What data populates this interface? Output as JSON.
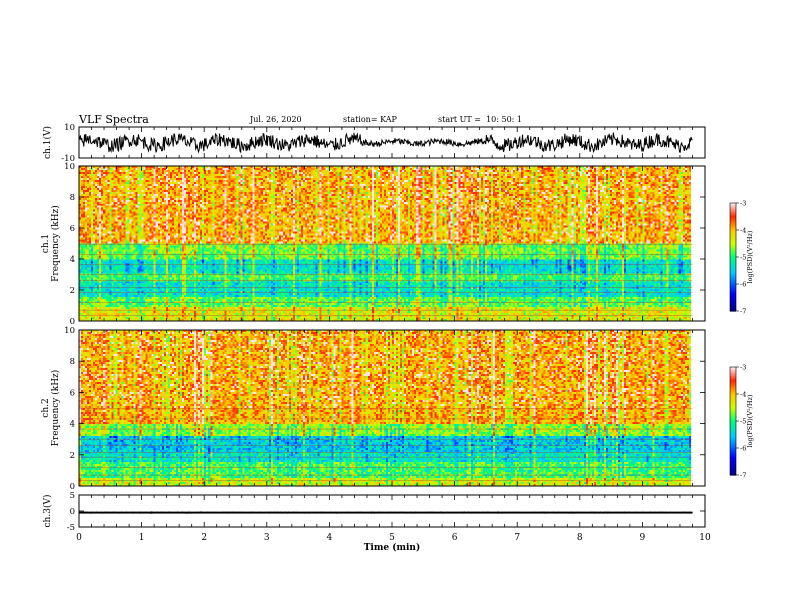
{
  "header": {
    "title": "VLF Spectra",
    "date": "Jul. 26, 2020",
    "station": "station= KAP",
    "start": "start UT =  10: 50: 1"
  },
  "chart_data": [
    {
      "type": "line",
      "panel": "ch1-waveform",
      "ylabel": "ch.1(V)",
      "ylim": [
        -10,
        10
      ],
      "yticks": [
        "10",
        "-10"
      ],
      "xlim": [
        0,
        10
      ],
      "series": [
        {
          "values": "noisy waveform, amplitude approx -8 to +8 V, 0 to 9.8 min"
        }
      ]
    },
    {
      "type": "heatmap",
      "panel": "ch1-spectrogram",
      "ylabel_line1": "ch.1",
      "ylabel_line2": "Frequency (kHz)",
      "ylim": [
        0,
        10
      ],
      "yticks": [
        "0",
        "2",
        "4",
        "6",
        "8",
        "10"
      ],
      "xlim": [
        0,
        10
      ],
      "colorbar": {
        "label": "log(PSD)(V²/Hz)",
        "range": [
          -7,
          -3
        ],
        "ticks": [
          "-3",
          "-4",
          "-5",
          "-6",
          "-7"
        ]
      },
      "bands": [
        {
          "from": 0,
          "to": 0.8,
          "level": -4.3
        },
        {
          "from": 0.8,
          "to": 1.5,
          "level": -4.8
        },
        {
          "from": 1.5,
          "to": 2.5,
          "level": -5.3
        },
        {
          "from": 2.5,
          "to": 3.0,
          "level": -4.9
        },
        {
          "from": 3.0,
          "to": 4.0,
          "level": -5.3
        },
        {
          "from": 4.0,
          "to": 5.0,
          "level": -4.7
        },
        {
          "from": 5.0,
          "to": 10.0,
          "level": -3.9
        }
      ]
    },
    {
      "type": "heatmap",
      "panel": "ch2-spectrogram",
      "ylabel_line1": "ch.2",
      "ylabel_line2": "Frequency (kHz)",
      "ylim": [
        0,
        10
      ],
      "yticks": [
        "0",
        "2",
        "4",
        "6",
        "8",
        "10"
      ],
      "xlim": [
        0,
        10
      ],
      "colorbar": {
        "label": "log(PSD)(V²/Hz)",
        "range": [
          -7,
          -3
        ],
        "ticks": [
          "-3",
          "-4",
          "-5",
          "-6",
          "-7"
        ]
      },
      "bands": [
        {
          "from": 0,
          "to": 0.5,
          "level": -4.4
        },
        {
          "from": 0.5,
          "to": 1.5,
          "level": -4.9
        },
        {
          "from": 1.5,
          "to": 2.2,
          "level": -5.3
        },
        {
          "from": 2.2,
          "to": 3.2,
          "level": -5.5
        },
        {
          "from": 3.2,
          "to": 4.0,
          "level": -4.6
        },
        {
          "from": 4.0,
          "to": 10.0,
          "level": -3.9
        }
      ]
    },
    {
      "type": "line",
      "panel": "ch3-waveform",
      "ylabel": "ch.3(V)",
      "ylim": [
        -5,
        5
      ],
      "yticks": [
        "5",
        "0",
        "-5"
      ],
      "xlim": [
        0,
        10
      ],
      "series": [
        {
          "values": "near-constant level approx -0.5 V with small noise, 0 to 9.8 min"
        }
      ]
    }
  ],
  "xaxis": {
    "label": "Time (min)",
    "ticks": [
      "0",
      "1",
      "2",
      "3",
      "4",
      "5",
      "6",
      "7",
      "8",
      "9",
      "10"
    ],
    "data_end": 9.8
  },
  "colors": {
    "frame": "#000000",
    "trace": "#000000",
    "background": "#ffffff"
  }
}
